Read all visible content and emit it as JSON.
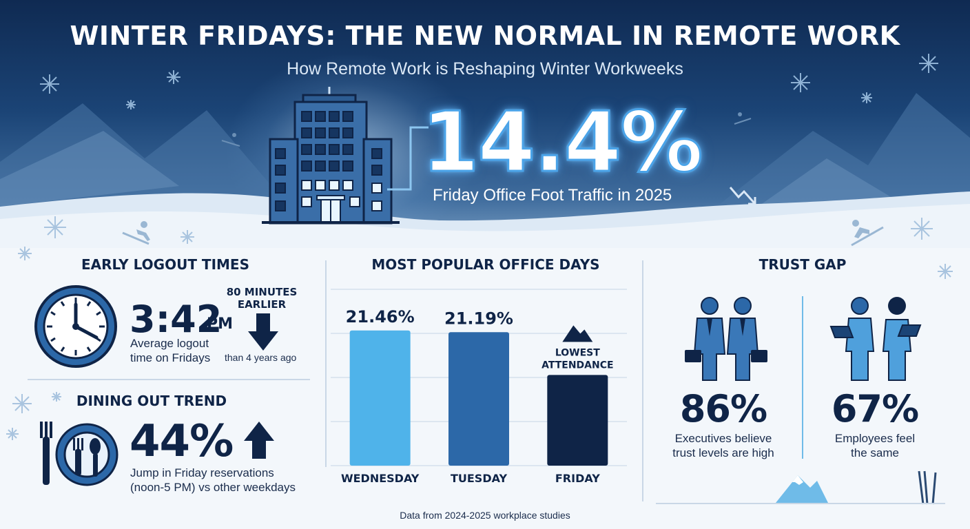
{
  "header": {
    "title": "WINTER FRIDAYS: THE NEW NORMAL IN REMOTE WORK",
    "subtitle": "How Remote Work is Reshaping Winter Workweeks"
  },
  "headline_stat": {
    "value": "14.4%",
    "label": "Friday Office Foot Traffic in 2025",
    "trend": "down"
  },
  "logout": {
    "title": "EARLY LOGOUT TIMES",
    "time": "3:42",
    "suffix": "PM",
    "description_line1": "Average logout",
    "description_line2": "time on Fridays",
    "earlier_line1": "80 MINUTES",
    "earlier_line2": "EARLIER",
    "comparison": "than 4 years ago"
  },
  "dining": {
    "title": "DINING OUT TREND",
    "value": "44%",
    "description_line1": "Jump in Friday reservations",
    "description_line2": "(noon-5 PM) vs other weekdays"
  },
  "office_days": {
    "title": "MOST POPULAR OFFICE DAYS",
    "annotation_line1": "LOWEST",
    "annotation_line2": "ATTENDANCE"
  },
  "chart_data": {
    "type": "bar",
    "title": "MOST POPULAR OFFICE DAYS",
    "categories": [
      "WEDNESDAY",
      "TUESDAY",
      "FRIDAY"
    ],
    "values": [
      21.46,
      21.19,
      14.4
    ],
    "labels": [
      "21.46%",
      "21.19%",
      ""
    ],
    "colors": [
      "#4fb3ea",
      "#2c68a8",
      "#0f2447"
    ],
    "ylim": [
      0,
      28
    ],
    "grid": true
  },
  "trust": {
    "title": "TRUST GAP",
    "executives_value": "86%",
    "executives_line1": "Executives believe",
    "executives_line2": "trust levels are high",
    "employees_value": "67%",
    "employees_line1": "Employees feel",
    "employees_line2": "the same"
  },
  "footer": {
    "source": "Data from 2024-2025 workplace studies"
  },
  "colors": {
    "navy": "#0f2447",
    "accent_blue": "#4fb3ea",
    "mid_blue": "#2c68a8"
  }
}
